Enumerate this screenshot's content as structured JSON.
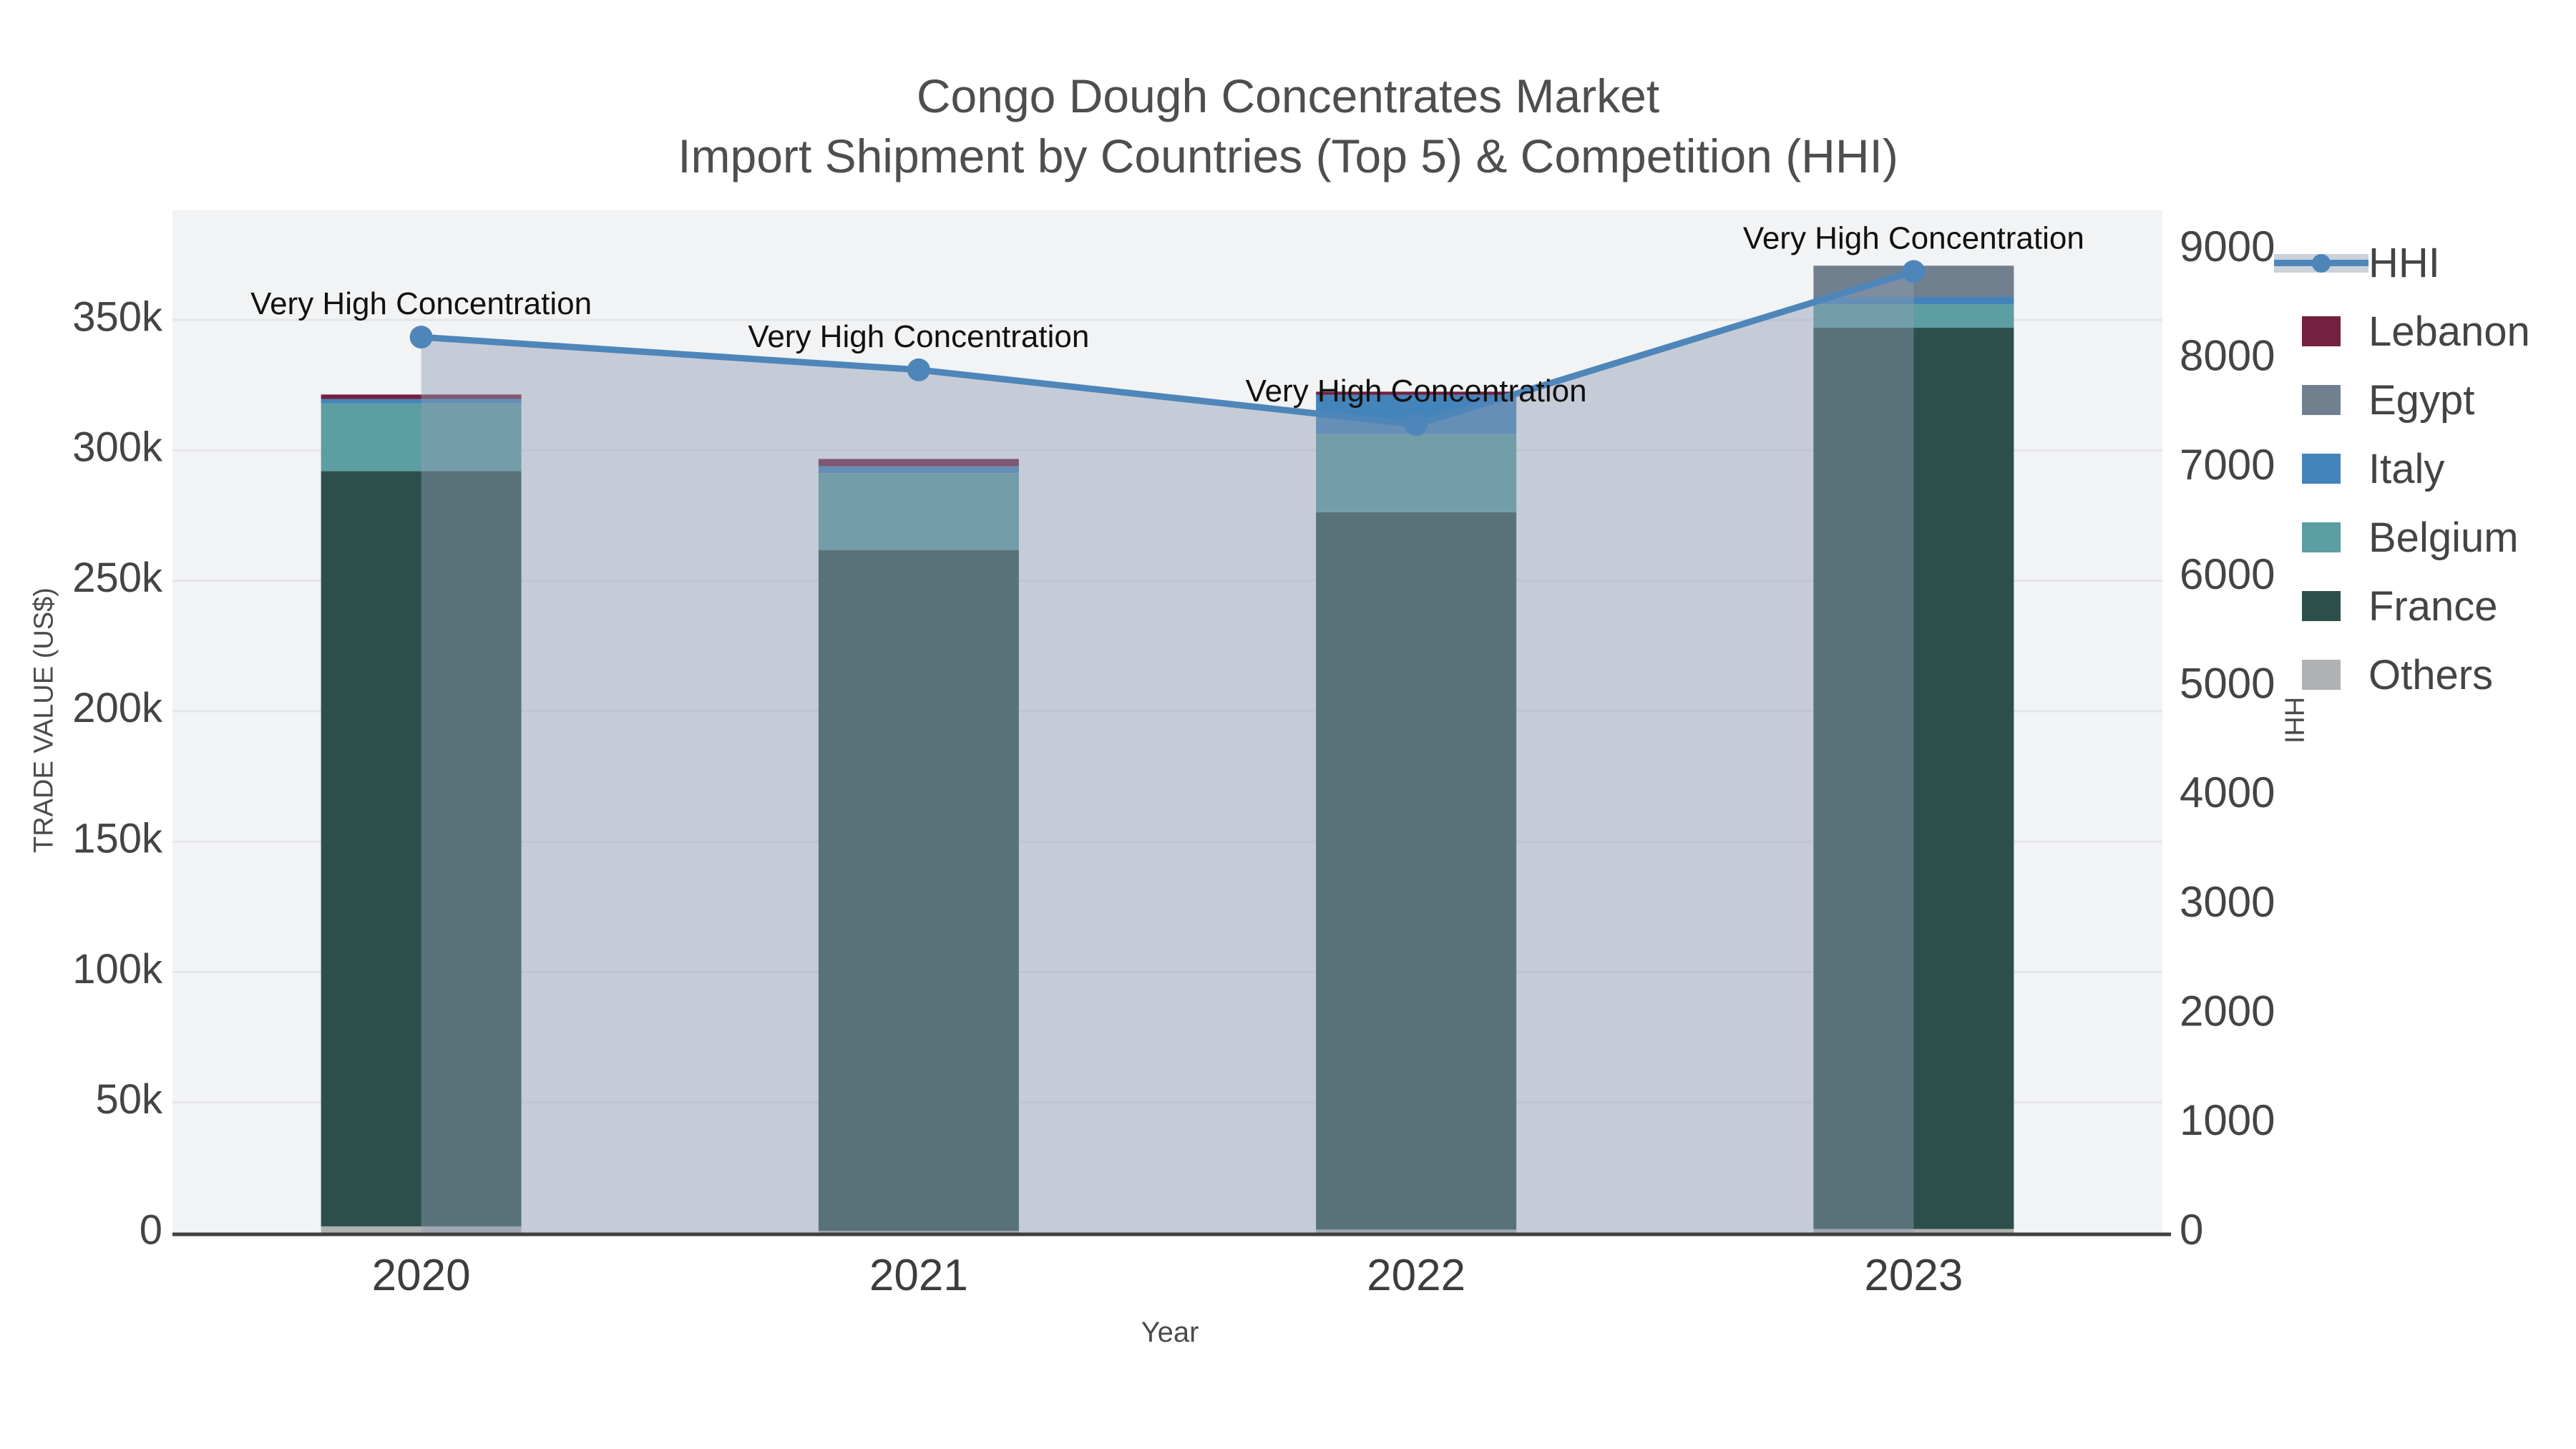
{
  "title": {
    "line1": "Congo Dough Concentrates Market",
    "line2": "Import Shipment by Countries (Top 5) & Competition (HHI)"
  },
  "chart_data": {
    "type": "bar",
    "subtype": "stacked-bars-with-line",
    "categories": [
      "2020",
      "2021",
      "2022",
      "2023"
    ],
    "series": [
      {
        "name": "Others",
        "color": "#b0b1b3",
        "values": [
          2500,
          800,
          1300,
          1500
        ]
      },
      {
        "name": "France",
        "color": "#2d4f4b",
        "values": [
          289500,
          261000,
          275000,
          345500
        ]
      },
      {
        "name": "Belgium",
        "color": "#5c9ea1",
        "values": [
          26000,
          29500,
          30000,
          9000
        ]
      },
      {
        "name": "Italy",
        "color": "#4384bb",
        "values": [
          1700,
          2600,
          15000,
          2800
        ]
      },
      {
        "name": "Egypt",
        "color": "#70808f",
        "values": [
          0,
          0,
          0,
          12000
        ]
      },
      {
        "name": "Lebanon",
        "color": "#74203f",
        "values": [
          1700,
          2800,
          1200,
          0
        ]
      }
    ],
    "line_series": {
      "name": "HHI",
      "color": "#4e86ba",
      "fill_color": "rgba(144,158,180,0.45)",
      "values": [
        8200,
        7900,
        7400,
        8800
      ]
    },
    "annotations": [
      {
        "text": "Very High Concentration"
      },
      {
        "text": "Very High Concentration"
      },
      {
        "text": "Very High Concentration"
      },
      {
        "text": "Very High Concentration"
      }
    ],
    "left_axis": {
      "title": "TRADE VALUE (US$)",
      "max": 392000,
      "ticks": [
        {
          "label": "0",
          "value": 0
        },
        {
          "label": "50k",
          "value": 50000
        },
        {
          "label": "100k",
          "value": 100000
        },
        {
          "label": "150k",
          "value": 150000
        },
        {
          "label": "200k",
          "value": 200000
        },
        {
          "label": "250k",
          "value": 250000
        },
        {
          "label": "300k",
          "value": 300000
        },
        {
          "label": "350k",
          "value": 350000
        }
      ]
    },
    "right_axis": {
      "title": "HHI",
      "max": 9360,
      "ticks": [
        {
          "label": "0",
          "value": 0
        },
        {
          "label": "1000",
          "value": 1000
        },
        {
          "label": "2000",
          "value": 2000
        },
        {
          "label": "3000",
          "value": 3000
        },
        {
          "label": "4000",
          "value": 4000
        },
        {
          "label": "5000",
          "value": 5000
        },
        {
          "label": "6000",
          "value": 6000
        },
        {
          "label": "7000",
          "value": 7000
        },
        {
          "label": "8000",
          "value": 8000
        },
        {
          "label": "9000",
          "value": 9000
        }
      ]
    },
    "x_axis": {
      "title": "Year"
    },
    "legend": [
      {
        "name": "HHI",
        "type": "line",
        "color": "#4e86ba",
        "band_color": "#ccd2da"
      },
      {
        "name": "Lebanon",
        "type": "swatch",
        "color": "#74203f"
      },
      {
        "name": "Egypt",
        "type": "swatch",
        "color": "#70808f"
      },
      {
        "name": "Italy",
        "type": "swatch",
        "color": "#4384bb"
      },
      {
        "name": "Belgium",
        "type": "swatch",
        "color": "#5c9ea1"
      },
      {
        "name": "France",
        "type": "swatch",
        "color": "#2d4f4b"
      },
      {
        "name": "Others",
        "type": "swatch",
        "color": "#b0b1b3"
      }
    ],
    "style": {
      "plot_bg": "#f2f3f4",
      "grid_color": "#e4e5e7",
      "axis_line_color": "#3f3f3f",
      "tick_color": "#444444",
      "annotation_color": "#111111"
    }
  }
}
